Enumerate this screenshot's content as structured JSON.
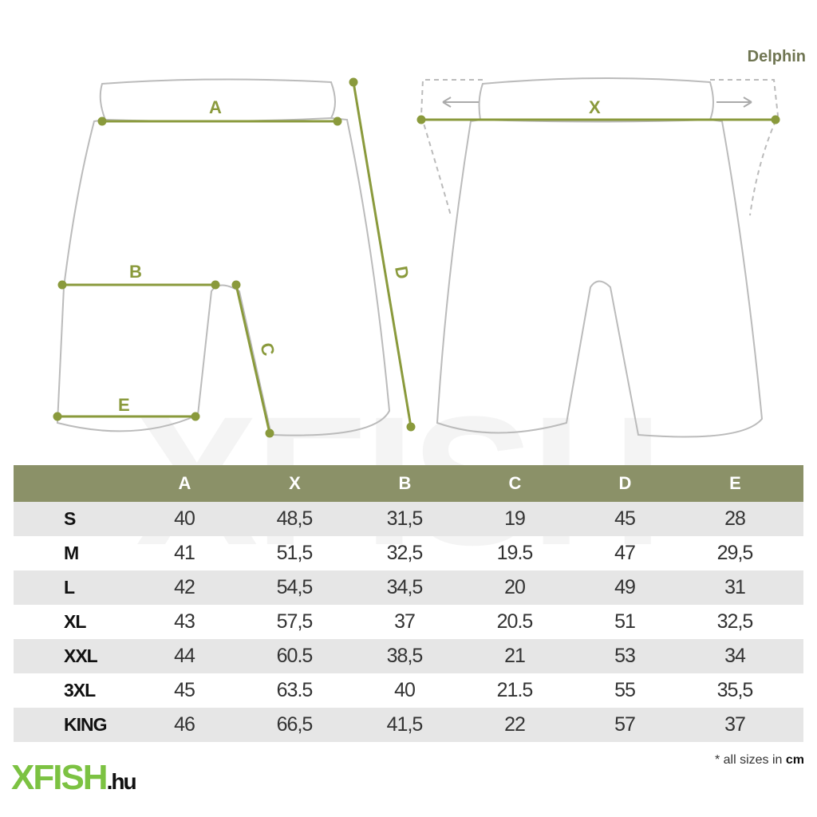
{
  "brand": "Delphin",
  "labels": {
    "a": "A",
    "b": "B",
    "c": "C",
    "d": "D",
    "e": "E",
    "x": "X"
  },
  "colors": {
    "header": "#8b9168",
    "measure": "#8a9a3c",
    "row_alt": "#e6e6e6",
    "xfish_green": "#7cc242"
  },
  "table": {
    "headers": [
      "",
      "A",
      "X",
      "B",
      "C",
      "D",
      "E"
    ],
    "rows": [
      [
        "S",
        "40",
        "48,5",
        "31,5",
        "19",
        "45",
        "28"
      ],
      [
        "M",
        "41",
        "51,5",
        "32,5",
        "19.5",
        "47",
        "29,5"
      ],
      [
        "L",
        "42",
        "54,5",
        "34,5",
        "20",
        "49",
        "31"
      ],
      [
        "XL",
        "43",
        "57,5",
        "37",
        "20.5",
        "51",
        "32,5"
      ],
      [
        "XXL",
        "44",
        "60.5",
        "38,5",
        "21",
        "53",
        "34"
      ],
      [
        "3XL",
        "45",
        "63.5",
        "40",
        "21.5",
        "55",
        "35,5"
      ],
      [
        "KING",
        "46",
        "66,5",
        "41,5",
        "22",
        "57",
        "37"
      ]
    ]
  },
  "note": {
    "prefix": "* all sizes in ",
    "unit": "cm"
  },
  "watermark": "XFISH",
  "logo": {
    "main": "XFISH",
    ".hu": ".hu"
  }
}
